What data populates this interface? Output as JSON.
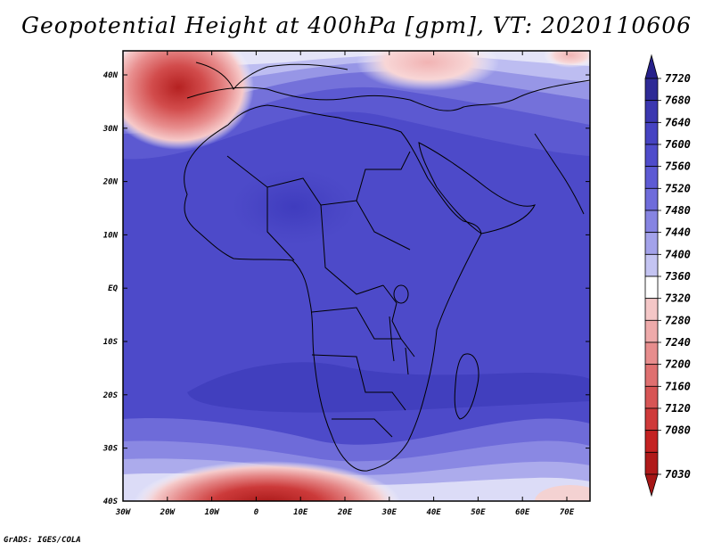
{
  "title": "Geopotential Height at 400hPa [gpm], VT: 2020110606",
  "credit": "GrADS: IGES/COLA",
  "lon_labels": [
    "30W",
    "20W",
    "10W",
    "0",
    "10E",
    "20E",
    "30E",
    "40E",
    "50E",
    "60E",
    "70E"
  ],
  "lat_labels": [
    "40N",
    "30N",
    "20N",
    "10N",
    "EQ",
    "10S",
    "20S",
    "30S",
    "40S"
  ],
  "colorbar": {
    "levels": [
      "7720",
      "7680",
      "7640",
      "7600",
      "7560",
      "7520",
      "7480",
      "7440",
      "7400",
      "7360",
      "7320",
      "7280",
      "7240",
      "7200",
      "7160",
      "7120",
      "7080",
      "7030"
    ],
    "colors": [
      "#2e2a96",
      "#3b37b0",
      "#4643c2",
      "#4f4ccb",
      "#5d5ad4",
      "#6f6cdb",
      "#8684e2",
      "#a3a2ea",
      "#c4c4f2",
      "#ffffff",
      "#f4c7c7",
      "#eeaaaa",
      "#e78d8d",
      "#df7070",
      "#d75555",
      "#cf3a3a",
      "#c42222",
      "#b01a1a"
    ],
    "top_arrow_color": "#26208a",
    "bottom_arrow_color": "#a61616"
  }
}
